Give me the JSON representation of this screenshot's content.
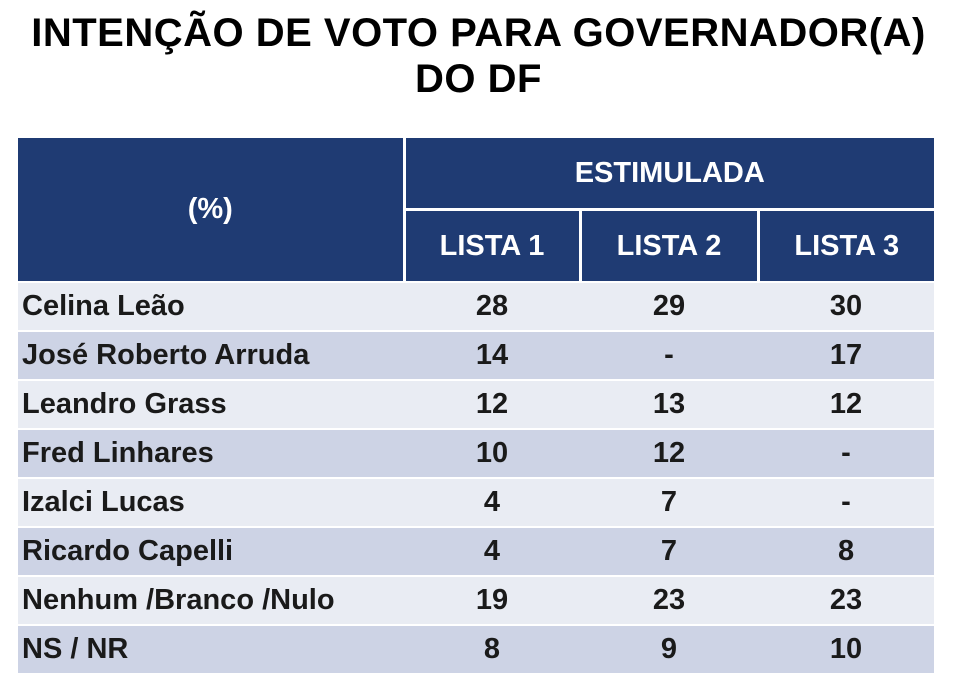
{
  "title_line1": "INTENÇÃO DE VOTO PARA GOVERNADOR(A)",
  "title_line2": "DO DF",
  "colors": {
    "header_bg": "#1f3b73",
    "header_text": "#ffffff",
    "row_light": "#e9ecf3",
    "row_dark": "#cdd3e5"
  },
  "chart_data": {
    "type": "table",
    "title": "INTENÇÃO DE VOTO PARA GOVERNADOR(A) DO DF",
    "row_header_label": "(%)",
    "column_group": "ESTIMULADA",
    "columns": [
      "LISTA 1",
      "LISTA 2",
      "LISTA 3"
    ],
    "rows": [
      {
        "name": "Celina Leão",
        "values": [
          "28",
          "29",
          "30"
        ]
      },
      {
        "name": "José Roberto Arruda",
        "values": [
          "14",
          "-",
          "17"
        ]
      },
      {
        "name": "Leandro Grass",
        "values": [
          "12",
          "13",
          "12"
        ]
      },
      {
        "name": "Fred Linhares",
        "values": [
          "10",
          "12",
          "-"
        ]
      },
      {
        "name": "Izalci Lucas",
        "values": [
          "4",
          "7",
          "-"
        ]
      },
      {
        "name": "Ricardo Capelli",
        "values": [
          "4",
          "7",
          "8"
        ]
      },
      {
        "name": "Nenhum /Branco /Nulo",
        "values": [
          "19",
          "23",
          "23"
        ]
      },
      {
        "name": "NS / NR",
        "values": [
          "8",
          "9",
          "10"
        ]
      }
    ]
  }
}
